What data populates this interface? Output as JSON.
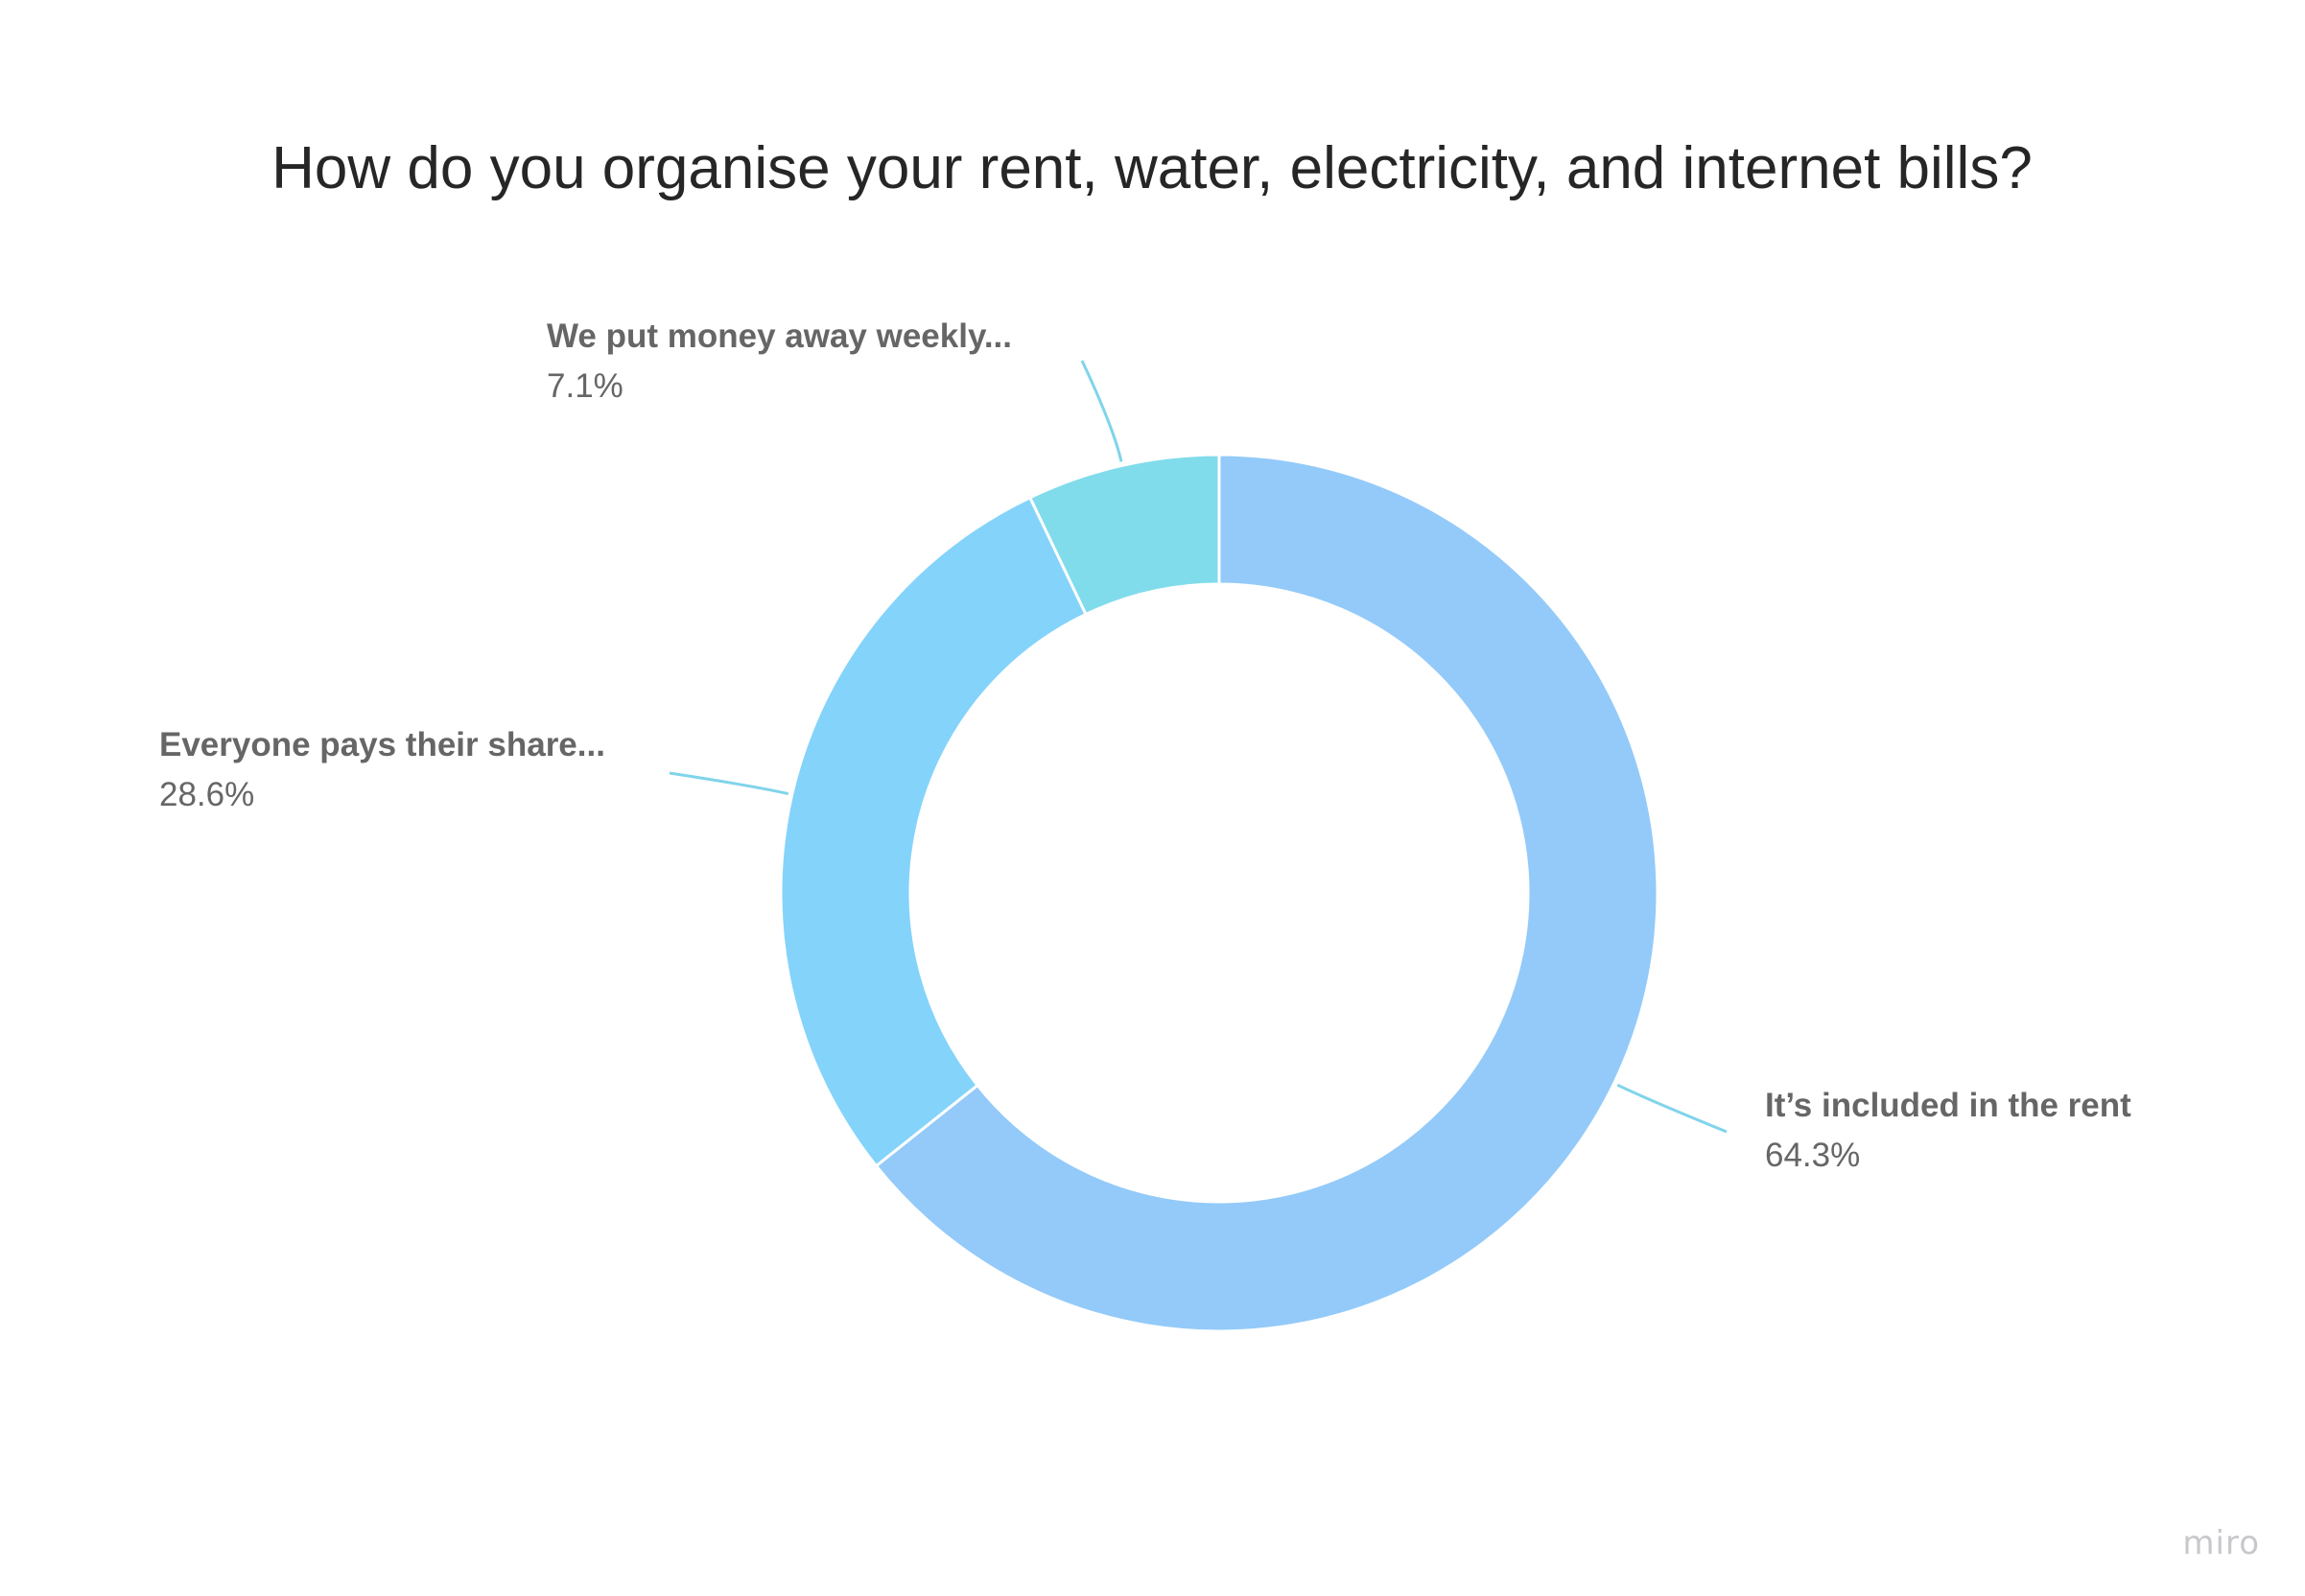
{
  "brand": "miro",
  "chart_data": {
    "type": "pie",
    "donut": true,
    "title": "How do you organise your rent, water, electricity, and internet bills?",
    "slices": [
      {
        "label": "It’s included in the rent",
        "value": 64.3,
        "value_label": "64.3%",
        "color": "#93caf9"
      },
      {
        "label": "Everyone pays their share...",
        "value": 28.6,
        "value_label": "28.6%",
        "color": "#84d3fb"
      },
      {
        "label": "We put money away weekly...",
        "value": 7.1,
        "value_label": "7.1%",
        "color": "#80dceb"
      }
    ],
    "start_angle_deg": 0,
    "direction": "clockwise",
    "separator_color": "#ffffff",
    "leader_color": "#80d4ea"
  }
}
